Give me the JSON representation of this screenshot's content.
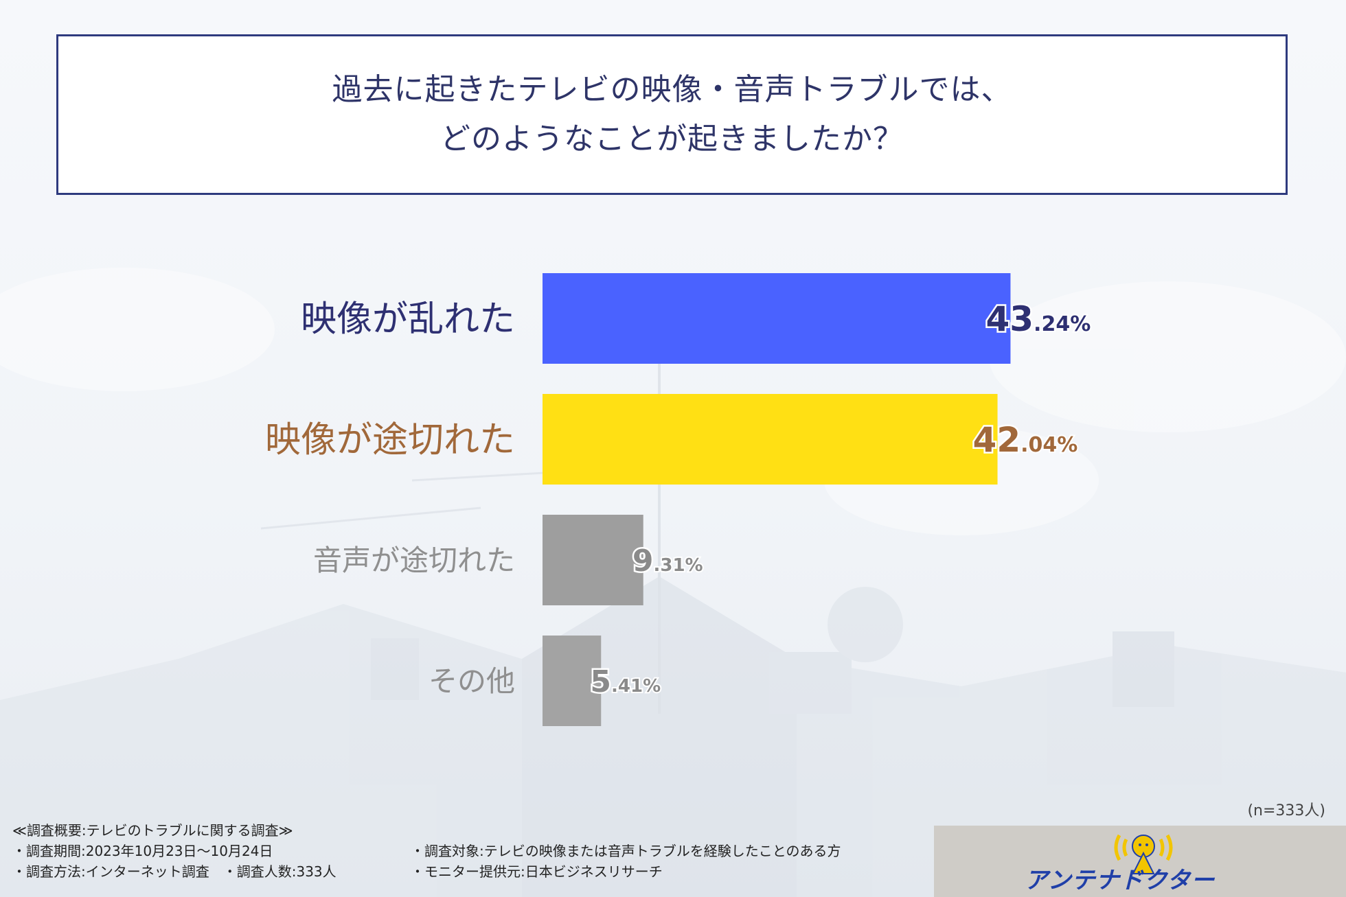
{
  "title": {
    "line1": "過去に起きたテレビの映像・音声トラブルでは、",
    "line2": "どのようなことが起きましたか？"
  },
  "chart_data": {
    "type": "bar",
    "orientation": "horizontal",
    "categories": [
      "映像が乱れた",
      "映像が途切れた",
      "音声が途切れた",
      "その他"
    ],
    "values": [
      43.24,
      42.04,
      9.31,
      5.41
    ],
    "value_labels": [
      {
        "int": "43",
        "dec": ".24%"
      },
      {
        "int": "42",
        "dec": ".04%"
      },
      {
        "int": "9",
        "dec": ".31%"
      },
      {
        "int": "5",
        "dec": ".41%"
      }
    ],
    "bar_colors": [
      "#4a62ff",
      "#ffe014",
      "#9e9e9e",
      "#a3a3a3"
    ],
    "label_colors": [
      "#2e3072",
      "#a1683a",
      "#8f8f8f",
      "#8f8f8f"
    ],
    "xlim": [
      0,
      50
    ],
    "grid": false,
    "legend": false
  },
  "note": "(n=333人)",
  "footer": {
    "header": "≪調査概要:テレビのトラブルに関する調査≫",
    "period": "・調査期間:2023年10月23日〜10月24日",
    "method": "・調査方法:インターネット調査　・調査人数:333人",
    "target": "・調査対象:テレビの映像または音声トラブルを経験したことのある方",
    "provider": "・モニター提供元:日本ビジネスリサーチ"
  },
  "logo": {
    "text": "アンテナドクター"
  }
}
